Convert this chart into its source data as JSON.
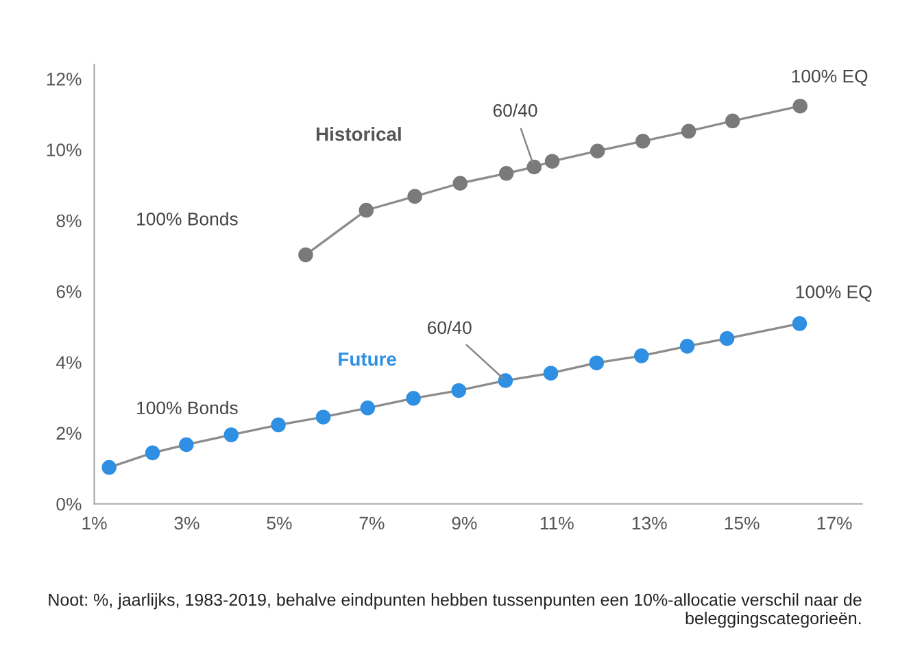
{
  "chart_data": {
    "type": "line",
    "marker": "circle",
    "grid": false,
    "legend": false,
    "series": [
      {
        "name": "Historical",
        "color": "#7a7a7a",
        "x": [
          5.57,
          6.88,
          7.93,
          8.91,
          9.91,
          10.51,
          10.9,
          11.88,
          12.86,
          13.85,
          14.8,
          16.26
        ],
        "values": [
          7.03,
          8.29,
          8.68,
          9.05,
          9.33,
          9.51,
          9.67,
          9.96,
          10.24,
          10.52,
          10.81,
          11.23
        ]
      },
      {
        "name": "Future",
        "color": "#2f8fe3",
        "x": [
          1.32,
          2.26,
          2.99,
          3.96,
          4.98,
          5.95,
          6.91,
          7.9,
          8.88,
          9.89,
          10.87,
          11.86,
          12.83,
          13.82,
          14.68,
          16.25
        ],
        "values": [
          1.03,
          1.44,
          1.67,
          1.95,
          2.23,
          2.45,
          2.71,
          2.98,
          3.2,
          3.48,
          3.69,
          3.98,
          4.18,
          4.45,
          4.67,
          5.09
        ]
      }
    ],
    "xlim": [
      1,
      17.6
    ],
    "ylim": [
      0,
      12.4
    ],
    "xticks": [
      {
        "value": 1,
        "label": "1%"
      },
      {
        "value": 3,
        "label": "3%"
      },
      {
        "value": 5,
        "label": "5%"
      },
      {
        "value": 7,
        "label": "7%"
      },
      {
        "value": 9,
        "label": "9%"
      },
      {
        "value": 11,
        "label": "11%"
      },
      {
        "value": 13,
        "label": "13%"
      },
      {
        "value": 15,
        "label": "15%"
      },
      {
        "value": 17,
        "label": "17%"
      }
    ],
    "yticks": [
      {
        "value": 0,
        "label": "0%"
      },
      {
        "value": 2,
        "label": "2%"
      },
      {
        "value": 4,
        "label": "4%"
      },
      {
        "value": 6,
        "label": "6%"
      },
      {
        "value": 8,
        "label": "8%"
      },
      {
        "value": 10,
        "label": "10%"
      },
      {
        "value": 12,
        "label": "12%"
      }
    ],
    "annotations": [
      "100% Bonds",
      {
        "text": "60/40",
        "x": 10.51,
        "y": 9.51
      },
      {
        "text": "100% EQ",
        "x": 16.26,
        "y": 11.23
      },
      "100% Bonds",
      {
        "text": "60/40",
        "x": 9.89,
        "y": 3.48
      },
      {
        "text": "100% EQ",
        "x": 16.25,
        "y": 5.09
      },
      "Noot: %, jaarlijks, 1983-2019, behalve eindpunten hebben tussenpunten een 10%-allocatie verschil naar de beleggingscategorieën."
    ]
  }
}
